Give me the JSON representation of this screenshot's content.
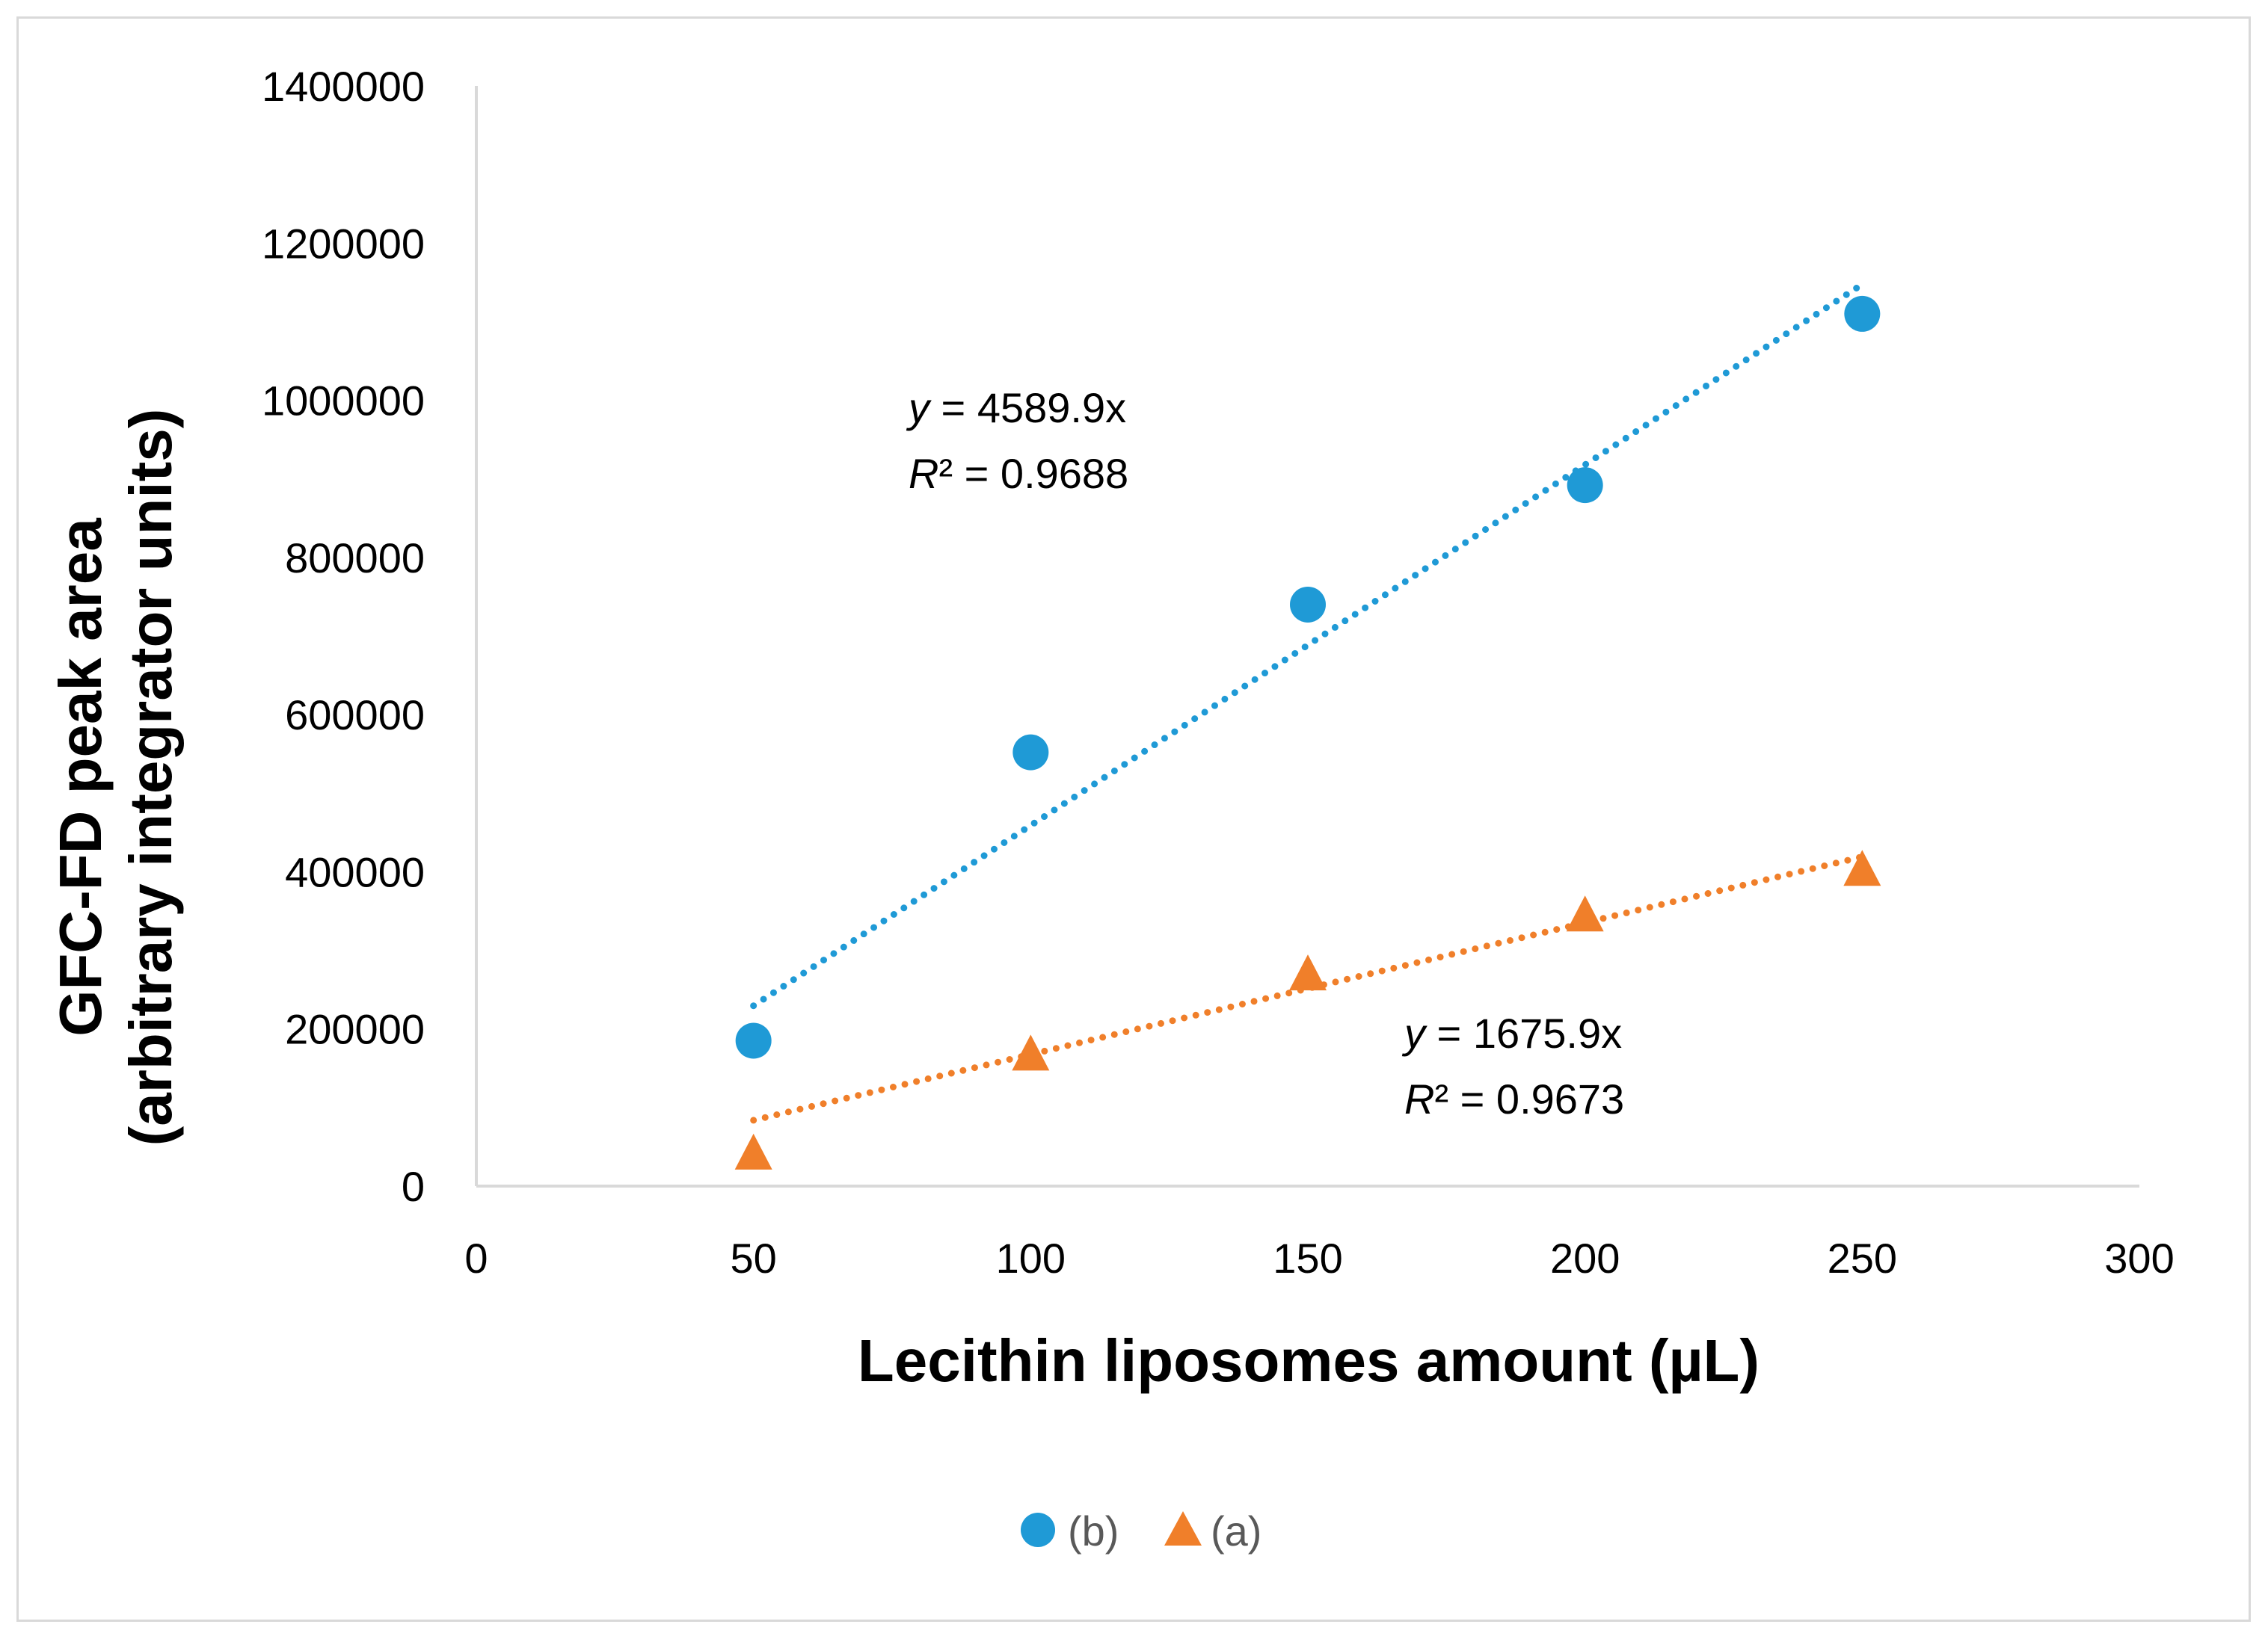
{
  "chart_data": {
    "type": "scatter",
    "title": "",
    "xlabel": "Lecithin liposomes amount  (µL)",
    "ylabel": [
      "GFC-FD peak area",
      "(arbitrary integrator units)"
    ],
    "xlim": [
      0,
      300
    ],
    "ylim": [
      0,
      1400000
    ],
    "xticks": [
      0,
      50,
      100,
      150,
      200,
      250,
      300
    ],
    "yticks": [
      0,
      200000,
      400000,
      600000,
      800000,
      1000000,
      1200000,
      1400000
    ],
    "grid": false,
    "legend_position": "bottom",
    "series": [
      {
        "name": "(b)",
        "marker": "circle",
        "color": "#1f9ad6",
        "x": [
          50,
          100,
          150,
          200,
          250
        ],
        "y": [
          185000,
          552000,
          740000,
          892000,
          1110000
        ],
        "trendline": {
          "slope": 4589.9,
          "x_range": [
            50,
            250
          ],
          "equation": "y = 4589.9x",
          "r2": "R² = 0.9688"
        }
      },
      {
        "name": "(a)",
        "marker": "triangle",
        "color": "#f07f2a",
        "x": [
          50,
          100,
          150,
          200,
          250
        ],
        "y": [
          42000,
          168000,
          270000,
          345000,
          403000
        ],
        "trendline": {
          "slope": 1675.9,
          "x_range": [
            50,
            250
          ],
          "equation": "y = 1675.9x",
          "r2": "R² = 0.9673"
        }
      }
    ]
  }
}
